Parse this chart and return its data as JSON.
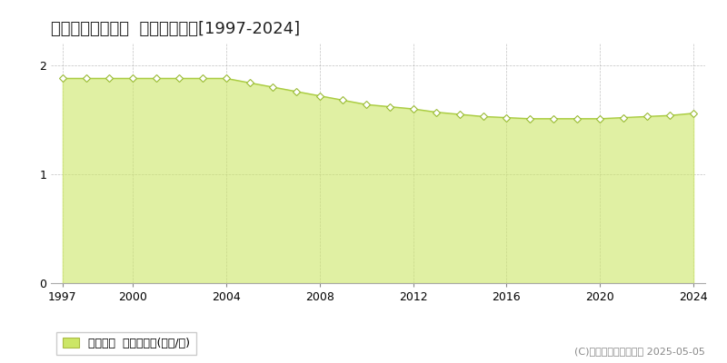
{
  "title": "河東郡鹿追町緑町  基準地価推移[1997-2024]",
  "years": [
    1997,
    1998,
    1999,
    2000,
    2001,
    2002,
    2003,
    2004,
    2005,
    2006,
    2007,
    2008,
    2009,
    2010,
    2011,
    2012,
    2013,
    2014,
    2015,
    2016,
    2017,
    2018,
    2019,
    2020,
    2021,
    2022,
    2023,
    2024
  ],
  "values": [
    1.88,
    1.88,
    1.88,
    1.88,
    1.88,
    1.88,
    1.88,
    1.88,
    1.84,
    1.8,
    1.76,
    1.72,
    1.68,
    1.64,
    1.62,
    1.6,
    1.57,
    1.55,
    1.53,
    1.52,
    1.51,
    1.51,
    1.51,
    1.51,
    1.52,
    1.53,
    1.54,
    1.56
  ],
  "line_color": "#aacc44",
  "fill_color": "#cce666",
  "fill_alpha": 0.6,
  "marker_facecolor": "#ffffff",
  "marker_edgecolor": "#99bb33",
  "ylim": [
    0,
    2.2
  ],
  "yticks": [
    0,
    1,
    2
  ],
  "legend_label": "基準地価  平均坪単価(万円/坪)",
  "legend_marker_color": "#cce666",
  "copyright_text": "(C)土地価格ドットコム 2025-05-05",
  "background_color": "#ffffff",
  "grid_color": "#999999",
  "title_fontsize": 13,
  "tick_fontsize": 9,
  "legend_fontsize": 9,
  "copyright_fontsize": 8,
  "xticks": [
    1997,
    2000,
    2004,
    2008,
    2012,
    2016,
    2020,
    2024
  ]
}
